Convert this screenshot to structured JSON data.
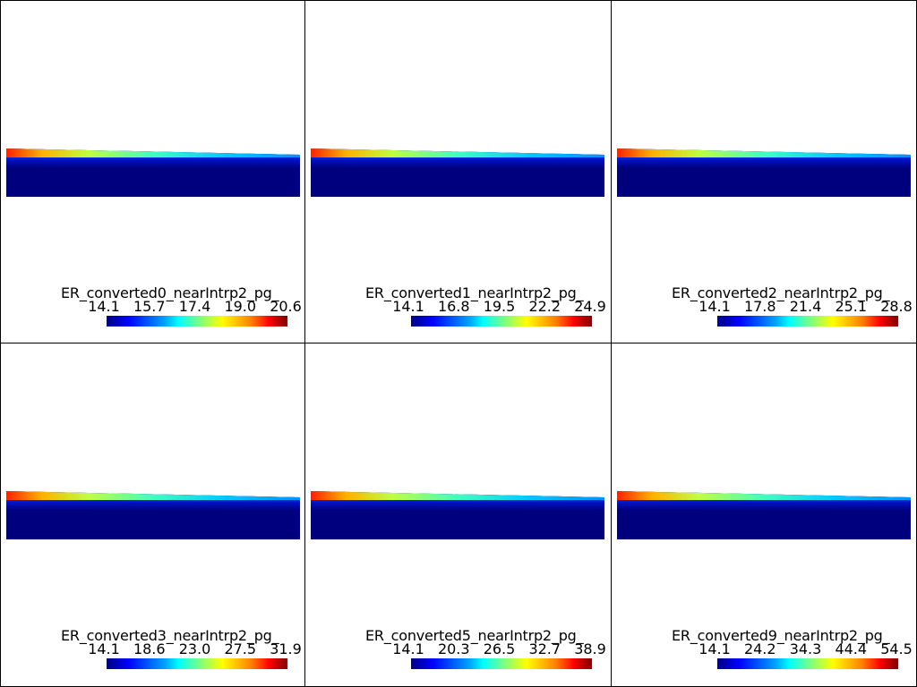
{
  "panels": [
    {
      "title": "ER_converted0_nearIntrp2_pg_",
      "ticks": [
        "14.1",
        "15.7",
        "17.4",
        "19.0",
        "20.6"
      ]
    },
    {
      "title": "ER_converted1_nearIntrp2_pg_",
      "ticks": [
        "14.1",
        "16.8",
        "19.5",
        "22.2",
        "24.9"
      ]
    },
    {
      "title": "ER_converted2_nearIntrp2_pg_",
      "ticks": [
        "14.1",
        "17.8",
        "21.4",
        "25.1",
        "28.8"
      ]
    },
    {
      "title": "ER_converted3_nearIntrp2_pg_",
      "ticks": [
        "14.1",
        "18.6",
        "23.0",
        "27.5",
        "31.9"
      ]
    },
    {
      "title": "ER_converted5_nearIntrp2_pg_",
      "ticks": [
        "14.1",
        "20.3",
        "26.5",
        "32.7",
        "38.9"
      ]
    },
    {
      "title": "ER_converted9_nearIntrp2_pg_",
      "ticks": [
        "14.1",
        "24.2",
        "34.3",
        "44.4",
        "54.5"
      ]
    }
  ],
  "colormap": "jet",
  "colors": {
    "background": "#ffffff",
    "border": "#000000",
    "low": "#00007f",
    "high": "#7f0000"
  }
}
